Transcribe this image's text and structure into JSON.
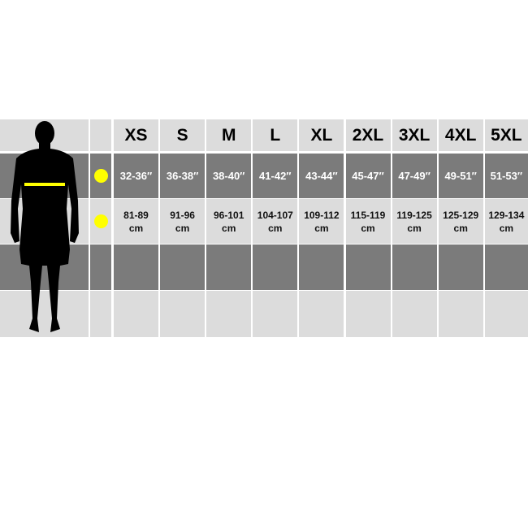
{
  "sizes": [
    "XS",
    "S",
    "M",
    "L",
    "XL",
    "2XL",
    "3XL",
    "4XL",
    "5XL"
  ],
  "chest_inches": [
    "32-36″",
    "36-38″",
    "38-40″",
    "41-42″",
    "43-44″",
    "45-47″",
    "47-49″",
    "49-51″",
    "51-53″"
  ],
  "chest_cm": [
    "81-89",
    "91-96",
    "96-101",
    "104-107",
    "109-112",
    "115-119",
    "119-125",
    "125-129",
    "129-134"
  ],
  "cm_unit": "cm",
  "colors": {
    "marker": "#ffff00",
    "dark_row": "#7b7b7b",
    "light_row": "#dcdcdc"
  },
  "icons": {
    "figure": "male-silhouette-icon",
    "marker": "yellow-dot-icon"
  }
}
